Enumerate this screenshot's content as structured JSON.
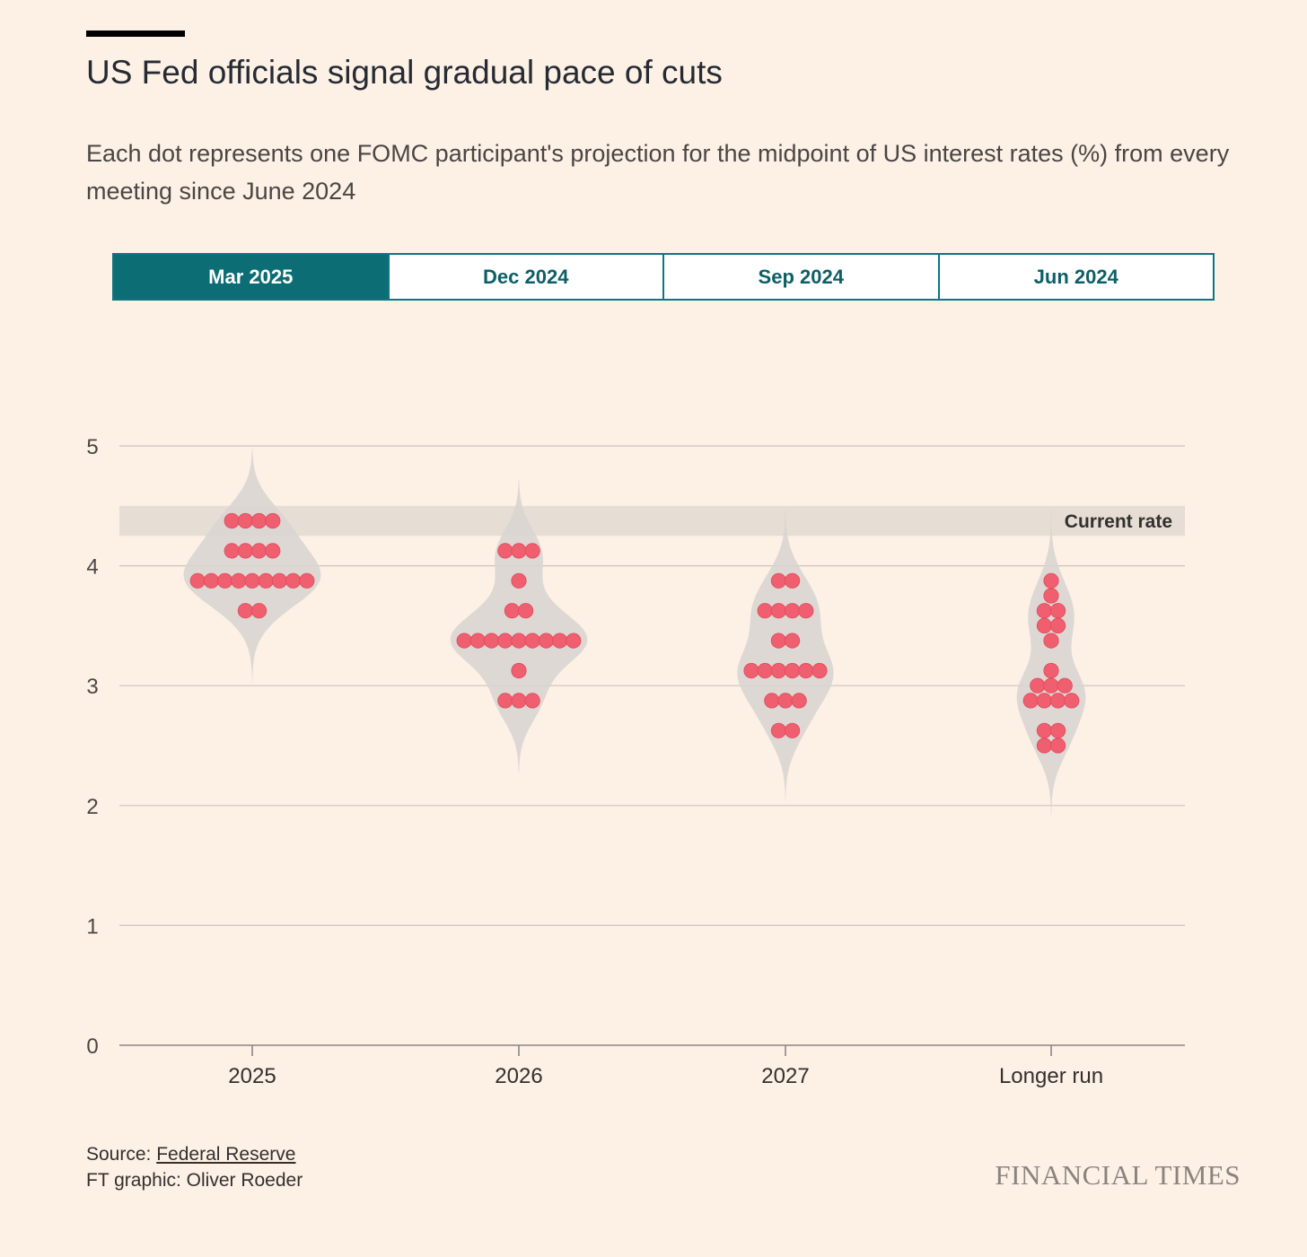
{
  "header": {
    "title": "US Fed officials signal gradual pace of cuts",
    "subtitle": "Each dot represents one FOMC participant's projection for the midpoint of US interest rates (%) from every meeting since June 2024"
  },
  "tabs": [
    {
      "label": "Mar 2025",
      "active": true
    },
    {
      "label": "Dec 2024",
      "active": false
    },
    {
      "label": "Sep 2024",
      "active": false
    },
    {
      "label": "Jun 2024",
      "active": false
    }
  ],
  "footer": {
    "source_prefix": "Source: ",
    "source_link": "Federal Reserve",
    "credit": "FT graphic: Oliver Roeder",
    "brand": "FINANCIAL TIMES"
  },
  "colors": {
    "accent": "#0d6d74",
    "dot": "#ef5f6f",
    "violin": "#d9d5d2",
    "band": "#e6ddd4",
    "background": "#fdf1e6"
  },
  "chart_data": {
    "type": "scatter",
    "subtype": "dot-plot with violin density",
    "categories": [
      "2025",
      "2026",
      "2027",
      "Longer run"
    ],
    "y_ticks": [
      0,
      1,
      2,
      3,
      4,
      5
    ],
    "ylim": [
      0,
      5
    ],
    "grid": true,
    "current_rate": {
      "label": "Current rate",
      "low": 4.25,
      "high": 4.5
    },
    "series": [
      {
        "category": "2025",
        "values": [
          {
            "y": 4.375,
            "n": 4
          },
          {
            "y": 4.125,
            "n": 4
          },
          {
            "y": 3.875,
            "n": 9
          },
          {
            "y": 3.625,
            "n": 2
          }
        ]
      },
      {
        "category": "2026",
        "values": [
          {
            "y": 4.125,
            "n": 3
          },
          {
            "y": 3.875,
            "n": 1
          },
          {
            "y": 3.625,
            "n": 2
          },
          {
            "y": 3.375,
            "n": 9
          },
          {
            "y": 3.125,
            "n": 1
          },
          {
            "y": 2.875,
            "n": 3
          }
        ]
      },
      {
        "category": "2027",
        "values": [
          {
            "y": 3.875,
            "n": 2
          },
          {
            "y": 3.625,
            "n": 4
          },
          {
            "y": 3.375,
            "n": 2
          },
          {
            "y": 3.125,
            "n": 6
          },
          {
            "y": 2.875,
            "n": 3
          },
          {
            "y": 2.625,
            "n": 2
          }
        ]
      },
      {
        "category": "Longer run",
        "values": [
          {
            "y": 3.875,
            "n": 1
          },
          {
            "y": 3.75,
            "n": 1
          },
          {
            "y": 3.625,
            "n": 2
          },
          {
            "y": 3.5,
            "n": 2
          },
          {
            "y": 3.375,
            "n": 1
          },
          {
            "y": 3.125,
            "n": 1
          },
          {
            "y": 3.0,
            "n": 3
          },
          {
            "y": 2.875,
            "n": 4
          },
          {
            "y": 2.625,
            "n": 2
          },
          {
            "y": 2.5,
            "n": 2
          }
        ]
      }
    ]
  }
}
